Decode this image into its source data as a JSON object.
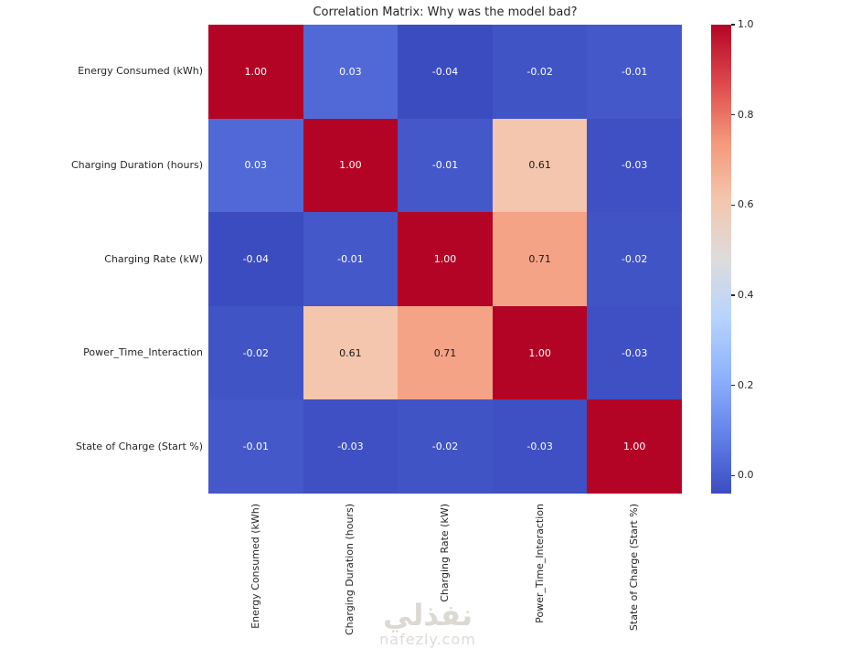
{
  "title": "Correlation Matrix: Why was the model bad?",
  "chart_data": {
    "type": "heatmap",
    "title": "Correlation Matrix: Why was the model bad?",
    "labels": [
      "Energy Consumed (kWh)",
      "Charging Duration (hours)",
      "Charging Rate (kW)",
      "Power_Time_Interaction",
      "State of Charge (Start %)"
    ],
    "matrix": [
      [
        1.0,
        0.03,
        -0.04,
        -0.02,
        -0.01
      ],
      [
        0.03,
        1.0,
        -0.01,
        0.61,
        -0.03
      ],
      [
        -0.04,
        -0.01,
        1.0,
        0.71,
        -0.02
      ],
      [
        -0.02,
        0.61,
        0.71,
        1.0,
        -0.03
      ],
      [
        -0.01,
        -0.03,
        -0.02,
        -0.03,
        1.0
      ]
    ],
    "annotation_decimals": 2,
    "colormap": "coolwarm",
    "vmin": -0.04,
    "vmax": 1.0,
    "colormap_anchors": [
      [
        0.0,
        "#3b4cc0"
      ],
      [
        0.125,
        "#6282ea"
      ],
      [
        0.25,
        "#8eb2fe"
      ],
      [
        0.375,
        "#b7d4fd"
      ],
      [
        0.5,
        "#dddcdc"
      ],
      [
        0.625,
        "#f4c6ae"
      ],
      [
        0.75,
        "#f4987a"
      ],
      [
        0.875,
        "#de494c"
      ],
      [
        1.0,
        "#b40426"
      ]
    ],
    "colorbar_ticks": [
      {
        "label": "1.0",
        "value": 1.0
      },
      {
        "label": "0.8",
        "value": 0.8
      },
      {
        "label": "0.6",
        "value": 0.6
      },
      {
        "label": "0.4",
        "value": 0.4
      },
      {
        "label": "0.2",
        "value": 0.2
      },
      {
        "label": "0.0",
        "value": 0.0
      }
    ],
    "legend_position": "right",
    "grid": false
  },
  "watermark": {
    "arabic": "نفذلي",
    "domain": "nafezly.com"
  },
  "colors": {
    "annotation_light": "#ffffff",
    "annotation_dark": "#1a1a1a",
    "axis_text": "#262626",
    "title_text": "#262626",
    "tick_mark": "#262626",
    "watermark": "#dcd8d3",
    "background": "#ffffff"
  }
}
